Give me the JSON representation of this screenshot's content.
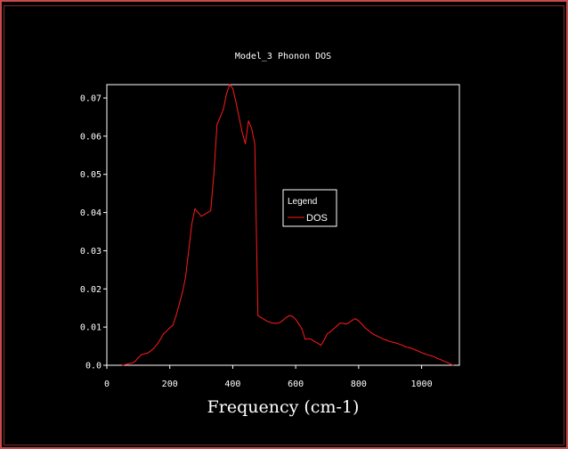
{
  "chart_data": {
    "type": "line",
    "title": "Model_3 Phonon DOS",
    "xlabel": "Frequency (cm-1)",
    "ylabel": "",
    "xlim": [
      0,
      1120
    ],
    "ylim": [
      0,
      0.0735
    ],
    "xticks": [
      0,
      200,
      400,
      600,
      800,
      1000
    ],
    "xtick_labels": [
      "0",
      "200",
      "400",
      "600",
      "800",
      "1000"
    ],
    "yticks": [
      0.0,
      0.01,
      0.02,
      0.03,
      0.04,
      0.05,
      0.06,
      0.07
    ],
    "ytick_labels": [
      "0.0",
      "0.01",
      "0.02",
      "0.03",
      "0.04",
      "0.05",
      "0.06",
      "0.07"
    ],
    "legend_title": "Legend",
    "legend_position": "center-right",
    "series": [
      {
        "name": "DOS",
        "color": "#ff1a1a",
        "x": [
          50,
          60,
          70,
          80,
          90,
          100,
          110,
          120,
          130,
          140,
          150,
          160,
          170,
          180,
          190,
          200,
          210,
          220,
          230,
          240,
          250,
          260,
          270,
          280,
          290,
          300,
          310,
          320,
          330,
          340,
          350,
          360,
          370,
          380,
          390,
          400,
          410,
          420,
          430,
          440,
          450,
          460,
          470,
          480,
          490,
          500,
          510,
          520,
          530,
          540,
          550,
          560,
          570,
          580,
          590,
          600,
          610,
          620,
          630,
          640,
          650,
          660,
          670,
          680,
          690,
          700,
          710,
          720,
          730,
          740,
          750,
          760,
          770,
          780,
          790,
          800,
          810,
          820,
          830,
          840,
          850,
          860,
          870,
          880,
          890,
          900,
          910,
          920,
          930,
          940,
          950,
          960,
          970,
          980,
          990,
          1000,
          1010,
          1020,
          1030,
          1040,
          1050,
          1060,
          1070,
          1080,
          1090,
          1100
        ],
        "y": [
          0.0,
          0.0002,
          0.0004,
          0.0006,
          0.001,
          0.002,
          0.0028,
          0.003,
          0.0032,
          0.0038,
          0.0045,
          0.0055,
          0.0068,
          0.0082,
          0.009,
          0.0098,
          0.0105,
          0.013,
          0.016,
          0.019,
          0.023,
          0.03,
          0.037,
          0.041,
          0.04,
          0.039,
          0.0395,
          0.04,
          0.0405,
          0.05,
          0.063,
          0.065,
          0.067,
          0.071,
          0.0735,
          0.0725,
          0.069,
          0.065,
          0.061,
          0.058,
          0.064,
          0.062,
          0.058,
          0.013,
          0.0125,
          0.012,
          0.0115,
          0.0112,
          0.011,
          0.011,
          0.0112,
          0.0118,
          0.0125,
          0.013,
          0.0128,
          0.012,
          0.0108,
          0.0095,
          0.0068,
          0.007,
          0.0068,
          0.0062,
          0.0058,
          0.0052,
          0.0065,
          0.0082,
          0.0088,
          0.0095,
          0.0102,
          0.011,
          0.011,
          0.0108,
          0.0112,
          0.0118,
          0.0122,
          0.0116,
          0.0108,
          0.0098,
          0.0092,
          0.0085,
          0.008,
          0.0076,
          0.0072,
          0.0068,
          0.0065,
          0.0062,
          0.006,
          0.0058,
          0.0055,
          0.0052,
          0.0048,
          0.0046,
          0.0044,
          0.004,
          0.0037,
          0.0033,
          0.003,
          0.0027,
          0.0025,
          0.0022,
          0.0018,
          0.0015,
          0.0011,
          0.0008,
          0.0004,
          0.0
        ]
      }
    ]
  }
}
